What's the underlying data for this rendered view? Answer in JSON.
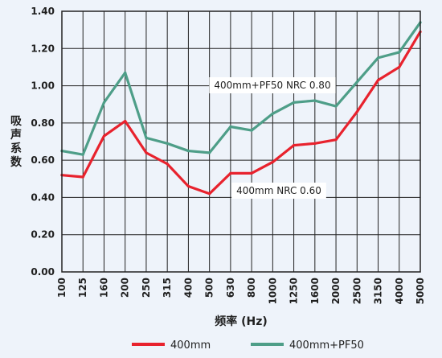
{
  "chart_data": {
    "type": "line",
    "title": "",
    "xlabel": "频率 (Hz)",
    "ylabel": "吸声系数",
    "ylim": [
      0,
      1.4
    ],
    "yticks": [
      "0.00",
      "0.20",
      "0.40",
      "0.60",
      "0.80",
      "1.00",
      "1.20",
      "1.40"
    ],
    "yticks_values": [
      0,
      0.2,
      0.4,
      0.6,
      0.8,
      1.0,
      1.2,
      1.4
    ],
    "categories": [
      "100",
      "125",
      "160",
      "200",
      "250",
      "315",
      "400",
      "500",
      "630",
      "800",
      "1000",
      "1250",
      "1600",
      "2000",
      "2500",
      "3150",
      "4000",
      "5000"
    ],
    "grid": true,
    "legend_position": "bottom",
    "series": [
      {
        "name": "400mm",
        "color": "#e8222d",
        "values": [
          0.52,
          0.51,
          0.73,
          0.81,
          0.64,
          0.58,
          0.46,
          0.42,
          0.53,
          0.53,
          0.59,
          0.68,
          0.69,
          0.71,
          0.86,
          1.03,
          1.1,
          1.29
        ]
      },
      {
        "name": "400mm+PF50",
        "color": "#4e9e88",
        "values": [
          0.65,
          0.63,
          0.91,
          1.07,
          0.72,
          0.69,
          0.65,
          0.64,
          0.78,
          0.76,
          0.85,
          0.91,
          0.92,
          0.89,
          1.02,
          1.15,
          1.18,
          1.34
        ]
      }
    ],
    "annotations": [
      {
        "text": "400mm+PF50  NRC 0.80"
      },
      {
        "text": "400mm  NRC 0.60"
      }
    ]
  }
}
